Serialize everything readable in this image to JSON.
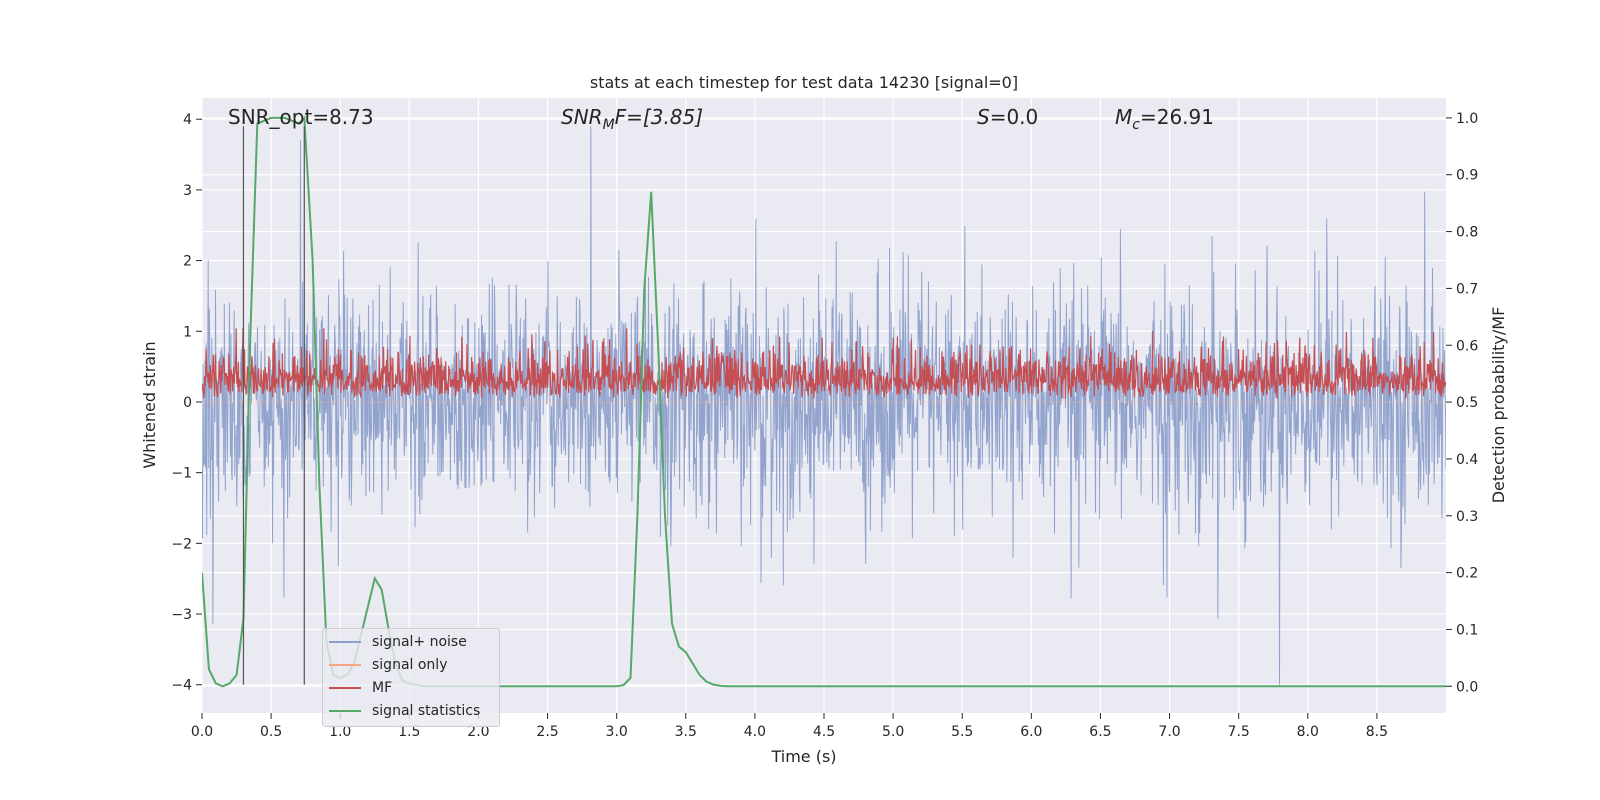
{
  "chart_data": {
    "type": "line",
    "title": "stats at each timestep for test data 14230 [signal=0]",
    "xlabel": "Time (s)",
    "ylabel": "Whitened strain",
    "ylabel_right": "Detection probability/MF",
    "xlim": [
      0.0,
      9.0
    ],
    "ylim": [
      -4.4,
      4.3
    ],
    "ylim_right": [
      -0.047,
      1.035
    ],
    "x_ticks": [
      "0.0",
      "0.5",
      "1.0",
      "1.5",
      "2.0",
      "2.5",
      "3.0",
      "3.5",
      "4.0",
      "4.5",
      "5.0",
      "5.5",
      "6.0",
      "6.5",
      "7.0",
      "7.5",
      "8.0",
      "8.5"
    ],
    "y_ticks": [
      "−4",
      "−3",
      "−2",
      "−1",
      "0",
      "1",
      "2",
      "3",
      "4"
    ],
    "y_ticks_right": [
      "0.0",
      "0.1",
      "0.2",
      "0.3",
      "0.4",
      "0.5",
      "0.6",
      "0.7",
      "0.8",
      "0.9",
      "1.0"
    ],
    "grid": true,
    "legend_position": "lower-left",
    "annotations": {
      "snr_opt": "SNR_opt=8.73",
      "snr_mf_base": "SNR",
      "snr_mf_sub": "M",
      "snr_mf_rest": "F=[3.85]",
      "s_var": "S",
      "s_rest": "=0.0",
      "mc_var": "M",
      "mc_sub": "c",
      "mc_rest": "=26.91"
    },
    "vertical_markers_x": [
      0.3,
      0.74
    ],
    "series": [
      {
        "name": "signal+ noise",
        "color": "#8da0cb",
        "axis": "left",
        "description_values": {
          "typical_range": [
            -1.7,
            1.7
          ],
          "max": 3.9,
          "min": -4.0
        }
      },
      {
        "name": "signal only",
        "color": "#f4a582",
        "axis": "left",
        "x": [
          0.0,
          9.0
        ],
        "y": [
          0.0,
          0.0
        ]
      },
      {
        "name": "MF",
        "color": "#c44e52",
        "axis": "right",
        "description_values": {
          "typical_range": [
            0.5,
            0.6
          ],
          "max": 0.63
        }
      },
      {
        "name": "signal statistics",
        "color": "#55a868",
        "axis": "right",
        "x": [
          0.0,
          0.05,
          0.1,
          0.15,
          0.2,
          0.25,
          0.3,
          0.35,
          0.4,
          0.5,
          0.6,
          0.7,
          0.74,
          0.8,
          0.85,
          0.9,
          0.95,
          1.0,
          1.05,
          1.1,
          1.15,
          1.2,
          1.25,
          1.3,
          1.35,
          1.4,
          1.45,
          1.5,
          1.6,
          1.8,
          2.0,
          2.5,
          3.0,
          3.05,
          3.1,
          3.15,
          3.2,
          3.25,
          3.3,
          3.35,
          3.4,
          3.45,
          3.5,
          3.55,
          3.6,
          3.65,
          3.7,
          3.75,
          3.8,
          3.9,
          4.0,
          5.0,
          6.0,
          7.0,
          8.0,
          9.0
        ],
        "y": [
          0.2,
          0.03,
          0.005,
          0.0,
          0.005,
          0.02,
          0.12,
          0.62,
          0.99,
          1.0,
          1.0,
          0.99,
          1.0,
          0.75,
          0.35,
          0.08,
          0.02,
          0.015,
          0.02,
          0.04,
          0.09,
          0.14,
          0.19,
          0.17,
          0.1,
          0.04,
          0.01,
          0.005,
          0.0,
          0.0,
          0.0,
          0.0,
          0.0,
          0.002,
          0.015,
          0.3,
          0.7,
          0.87,
          0.6,
          0.3,
          0.11,
          0.07,
          0.06,
          0.04,
          0.02,
          0.008,
          0.003,
          0.001,
          0.0,
          0.0,
          0.0,
          0.0,
          0.0,
          0.0,
          0.0,
          0.0
        ]
      }
    ]
  }
}
